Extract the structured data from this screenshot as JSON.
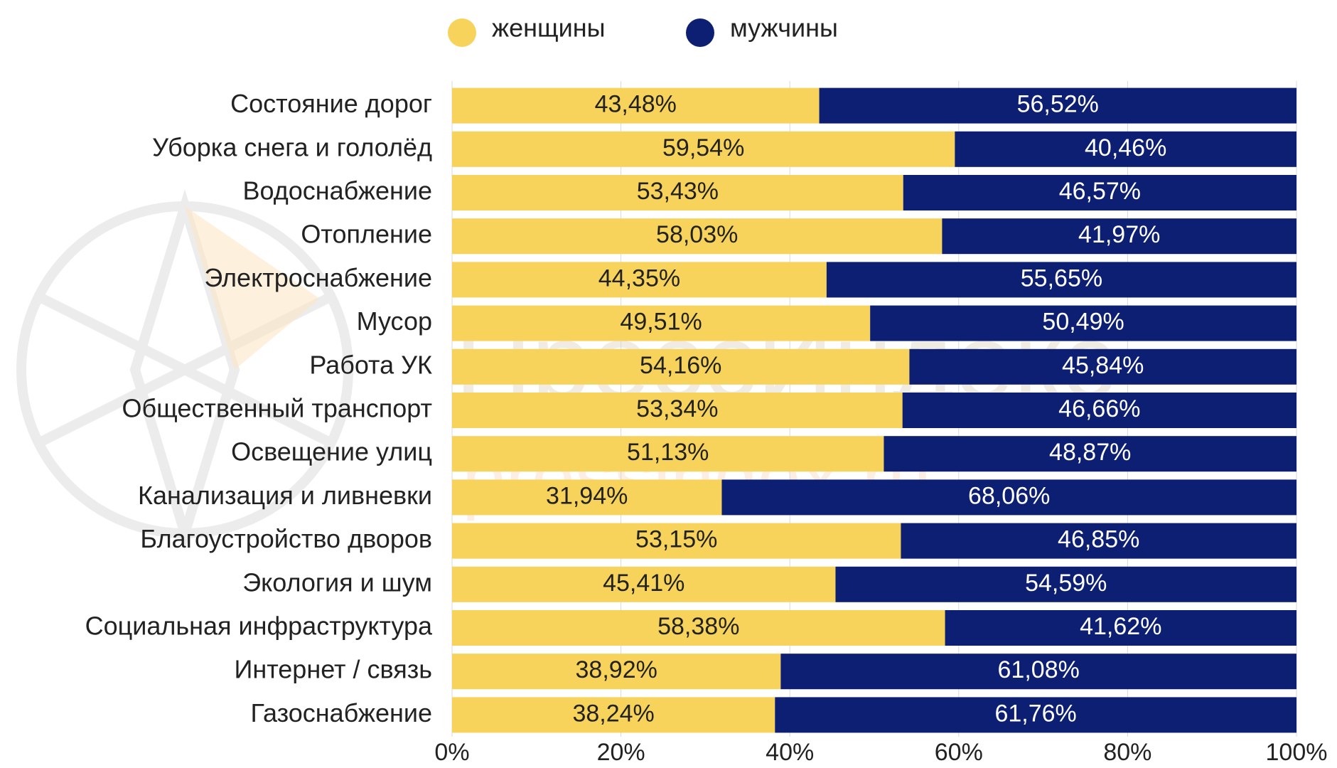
{
  "chart_data": {
    "type": "stacked-bar-horizontal",
    "categories": [
      "Состояние дорог",
      "Уборка снега и гололёд",
      "Водоснабжение",
      "Отопление",
      "Электроснабжение",
      "Мусор",
      "Работа УК",
      "Общественный транспорт",
      "Освещение улиц",
      "Канализация и ливневки",
      "Благоустройство дворов",
      "Экология и шум",
      "Социальная инфраструктура",
      "Интернет / связь",
      "Газоснабжение"
    ],
    "series": [
      {
        "name": "женщины",
        "color": "#f7d35c",
        "values": [
          43.48,
          59.54,
          53.43,
          58.03,
          44.35,
          49.51,
          54.16,
          53.34,
          51.13,
          31.94,
          53.15,
          45.41,
          58.38,
          38.92,
          38.24
        ],
        "value_labels": [
          "43,48%",
          "59,54%",
          "53,43%",
          "58,03%",
          "44,35%",
          "49,51%",
          "54,16%",
          "53,34%",
          "51,13%",
          "31,94%",
          "53,15%",
          "45,41%",
          "58,38%",
          "38,92%",
          "38,24%"
        ]
      },
      {
        "name": "мужчины",
        "color": "#0d1f73",
        "values": [
          56.52,
          40.46,
          46.57,
          41.97,
          55.65,
          50.49,
          45.84,
          46.66,
          48.87,
          68.06,
          46.85,
          54.59,
          41.62,
          61.08,
          61.76
        ],
        "value_labels": [
          "56,52%",
          "40,46%",
          "46,57%",
          "41,97%",
          "55,65%",
          "50,49%",
          "45,84%",
          "46,66%",
          "48,87%",
          "68,06%",
          "46,85%",
          "54,59%",
          "41,62%",
          "61,08%",
          "61,76%"
        ]
      }
    ],
    "xlim": [
      0,
      100
    ],
    "xticks": [
      {
        "value": 0,
        "label": "0%"
      },
      {
        "value": 20,
        "label": "20%"
      },
      {
        "value": 40,
        "label": "40%"
      },
      {
        "value": 60,
        "label": "60%"
      },
      {
        "value": 80,
        "label": "80%"
      },
      {
        "value": 100,
        "label": "100%"
      }
    ],
    "grid": true,
    "legend": "top",
    "watermark": {
      "title": "ПрессИндекс",
      "url": "pressindex.ru"
    }
  }
}
